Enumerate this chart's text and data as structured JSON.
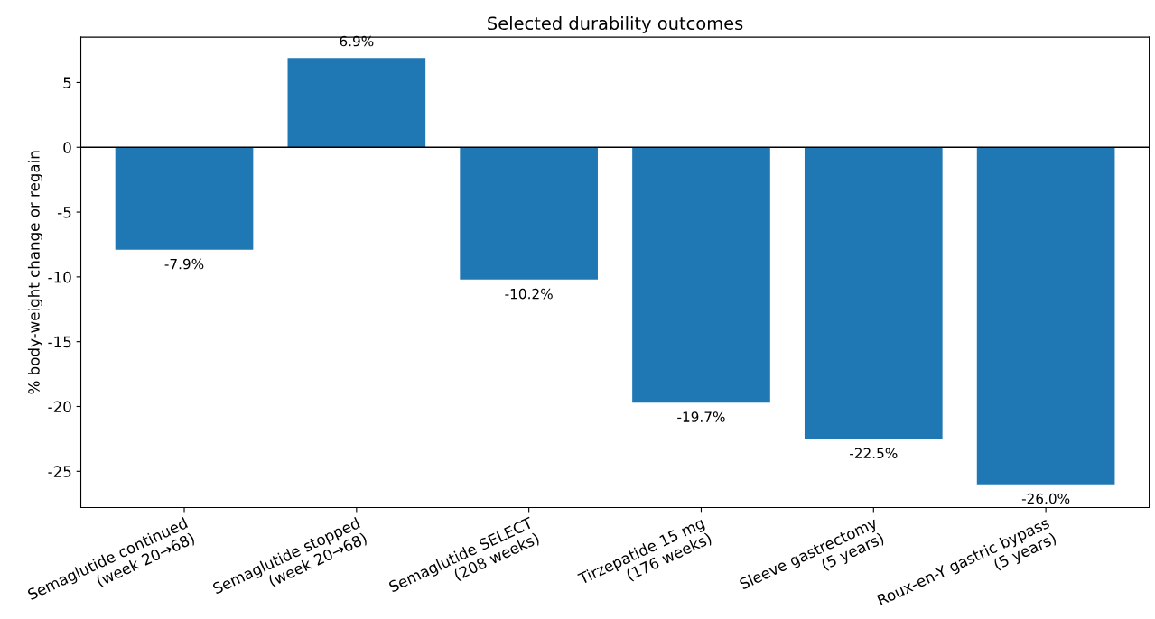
{
  "chart_data": {
    "type": "bar",
    "title": "Selected durability outcomes",
    "ylabel": "% body-weight change or regain",
    "categories": [
      "Semaglutide continued\n(week 20→68)",
      "Semaglutide stopped\n(week 20→68)",
      "Semaglutide SELECT\n(208 weeks)",
      "Tirzepatide 15 mg\n(176 weeks)",
      "Sleeve gastrectomy\n(5 years)",
      "Roux-en-Y gastric bypass\n(5 years)"
    ],
    "values": [
      -7.9,
      6.9,
      -10.2,
      -19.7,
      -22.5,
      -26.0
    ],
    "value_labels": [
      "-7.9%",
      "6.9%",
      "-10.2%",
      "-19.7%",
      "-22.5%",
      "-26.0%"
    ],
    "color": "#1f77b4",
    "ylim": [
      -27.8,
      8.5
    ],
    "yticks": [
      -25,
      -20,
      -15,
      -10,
      -5,
      0,
      5
    ],
    "ref_lines": [
      {
        "axis": "y",
        "value": 0,
        "color": "#000000"
      }
    ],
    "grid": false,
    "legend": false
  }
}
